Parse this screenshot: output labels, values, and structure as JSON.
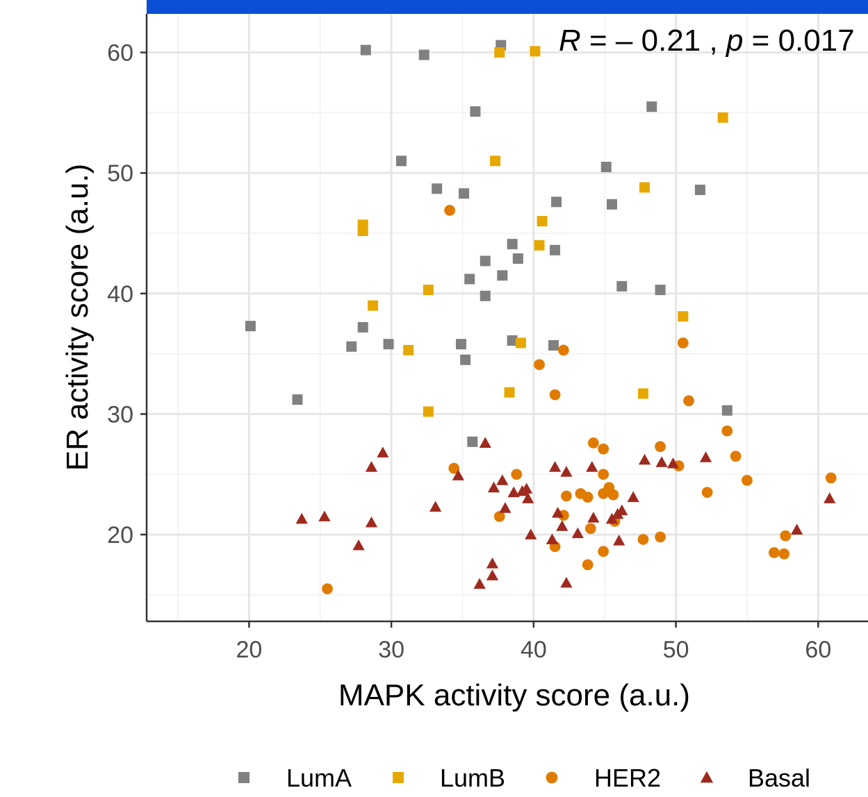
{
  "chart_data": {
    "type": "scatter",
    "xlabel": "MAPK activity score (a.u.)",
    "ylabel": "ER activity score (a.u.)",
    "xlim": [
      12.8,
      63.5
    ],
    "ylim": [
      12.8,
      63.2
    ],
    "x_ticks": [
      20,
      30,
      40,
      50,
      60
    ],
    "y_ticks": [
      20,
      30,
      40,
      50,
      60
    ],
    "x_tick_labels": [
      "20",
      "30",
      "40",
      "50",
      "60"
    ],
    "y_tick_labels": [
      "20",
      "30",
      "40",
      "50",
      "60"
    ],
    "grid": true,
    "legend_position": "bottom",
    "annotation": {
      "r_symbol": "R",
      "r_text": " = – 0.21 , ",
      "p_symbol": "p",
      "p_text": " = 0.017"
    },
    "series": [
      {
        "name": "LumA",
        "marker": "square",
        "color": "#808080",
        "points": [
          [
            28.2,
            60.2
          ],
          [
            32.3,
            59.8
          ],
          [
            37.7,
            60.6
          ],
          [
            35.9,
            55.1
          ],
          [
            48.3,
            55.5
          ],
          [
            30.7,
            51.0
          ],
          [
            45.1,
            50.5
          ],
          [
            33.2,
            48.7
          ],
          [
            35.1,
            48.3
          ],
          [
            41.6,
            47.6
          ],
          [
            45.5,
            47.4
          ],
          [
            51.7,
            48.6
          ],
          [
            38.5,
            44.1
          ],
          [
            41.5,
            43.6
          ],
          [
            38.9,
            42.9
          ],
          [
            36.6,
            42.7
          ],
          [
            35.5,
            41.2
          ],
          [
            37.8,
            41.5
          ],
          [
            46.2,
            40.6
          ],
          [
            48.9,
            40.3
          ],
          [
            36.6,
            39.8
          ],
          [
            20.1,
            37.3
          ],
          [
            28.0,
            37.2
          ],
          [
            27.2,
            35.6
          ],
          [
            29.8,
            35.8
          ],
          [
            34.9,
            35.8
          ],
          [
            38.5,
            36.1
          ],
          [
            41.4,
            35.7
          ],
          [
            35.2,
            34.5
          ],
          [
            23.4,
            31.2
          ],
          [
            53.6,
            30.3
          ],
          [
            35.7,
            27.7
          ]
        ]
      },
      {
        "name": "LumB",
        "marker": "square",
        "color": "#e6a800",
        "points": [
          [
            37.6,
            60.0
          ],
          [
            40.1,
            60.1
          ],
          [
            53.3,
            54.6
          ],
          [
            37.3,
            51.0
          ],
          [
            47.8,
            48.8
          ],
          [
            28.0,
            45.7
          ],
          [
            28.0,
            45.2
          ],
          [
            40.6,
            46.0
          ],
          [
            40.4,
            44.0
          ],
          [
            32.6,
            40.3
          ],
          [
            28.7,
            39.0
          ],
          [
            50.5,
            38.1
          ],
          [
            39.1,
            35.9
          ],
          [
            31.2,
            35.3
          ],
          [
            38.3,
            31.8
          ],
          [
            47.7,
            31.7
          ],
          [
            32.6,
            30.2
          ]
        ]
      },
      {
        "name": "HER2",
        "marker": "circle",
        "color": "#e07b00",
        "points": [
          [
            34.1,
            46.9
          ],
          [
            40.4,
            34.1
          ],
          [
            42.1,
            35.3
          ],
          [
            50.5,
            35.9
          ],
          [
            41.5,
            31.6
          ],
          [
            50.9,
            31.1
          ],
          [
            53.6,
            28.6
          ],
          [
            44.2,
            27.6
          ],
          [
            44.9,
            27.1
          ],
          [
            48.9,
            27.3
          ],
          [
            54.2,
            26.5
          ],
          [
            34.4,
            25.5
          ],
          [
            50.2,
            25.7
          ],
          [
            38.8,
            25.0
          ],
          [
            44.9,
            25.0
          ],
          [
            55.0,
            24.5
          ],
          [
            60.9,
            24.7
          ],
          [
            42.3,
            23.2
          ],
          [
            43.3,
            23.4
          ],
          [
            43.8,
            23.1
          ],
          [
            44.9,
            23.4
          ],
          [
            45.3,
            23.9
          ],
          [
            45.6,
            23.3
          ],
          [
            52.2,
            23.5
          ],
          [
            37.6,
            21.5
          ],
          [
            42.1,
            21.6
          ],
          [
            45.7,
            21.1
          ],
          [
            44.0,
            20.5
          ],
          [
            47.7,
            19.6
          ],
          [
            48.9,
            19.8
          ],
          [
            41.5,
            19.0
          ],
          [
            44.9,
            18.6
          ],
          [
            43.8,
            17.5
          ],
          [
            57.7,
            19.9
          ],
          [
            56.9,
            18.5
          ],
          [
            57.6,
            18.4
          ],
          [
            25.5,
            15.5
          ]
        ]
      },
      {
        "name": "Basal",
        "marker": "triangle",
        "color": "#9e2a1f",
        "points": [
          [
            36.6,
            27.6
          ],
          [
            29.4,
            26.8
          ],
          [
            28.6,
            25.6
          ],
          [
            34.7,
            24.9
          ],
          [
            41.5,
            25.6
          ],
          [
            42.3,
            25.2
          ],
          [
            44.1,
            25.6
          ],
          [
            47.8,
            26.2
          ],
          [
            49.0,
            26.0
          ],
          [
            49.8,
            25.9
          ],
          [
            52.1,
            26.4
          ],
          [
            37.2,
            23.9
          ],
          [
            37.8,
            24.5
          ],
          [
            38.6,
            23.5
          ],
          [
            39.2,
            23.6
          ],
          [
            39.5,
            23.8
          ],
          [
            39.6,
            23.0
          ],
          [
            33.1,
            22.3
          ],
          [
            38.0,
            22.2
          ],
          [
            47.0,
            23.1
          ],
          [
            46.2,
            22.0
          ],
          [
            41.7,
            21.8
          ],
          [
            44.2,
            21.4
          ],
          [
            45.5,
            21.3
          ],
          [
            45.9,
            21.7
          ],
          [
            23.7,
            21.3
          ],
          [
            25.3,
            21.5
          ],
          [
            28.6,
            21.0
          ],
          [
            42.0,
            20.7
          ],
          [
            39.8,
            20.0
          ],
          [
            43.1,
            20.1
          ],
          [
            41.3,
            19.6
          ],
          [
            46.0,
            19.5
          ],
          [
            58.5,
            20.4
          ],
          [
            60.8,
            23.0
          ],
          [
            27.7,
            19.1
          ],
          [
            37.1,
            17.6
          ],
          [
            37.1,
            16.6
          ],
          [
            36.2,
            15.9
          ],
          [
            42.3,
            16.0
          ]
        ]
      }
    ]
  }
}
